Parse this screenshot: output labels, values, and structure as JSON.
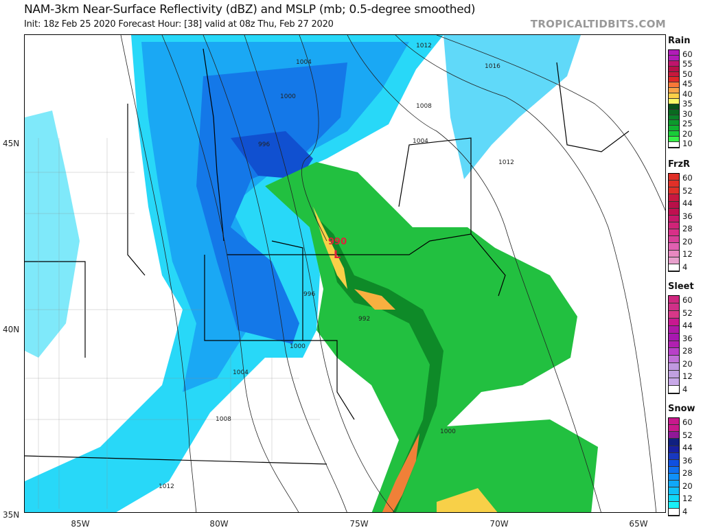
{
  "header": {
    "title": "NAM-3km Near-Surface Reflectivity (dBZ) and MSLP (mb; 0.5-degree smoothed)",
    "subtitle": "Init: 18z Feb 25 2020   Forecast Hour: [38]   valid at 08z Thu, Feb 27 2020",
    "brand": "TROPICALTIDBITS.COM"
  },
  "axes": {
    "longitudes": [
      "85W",
      "80W",
      "75W",
      "70W",
      "65W"
    ],
    "latitudes": [
      "45N",
      "40N",
      "35N"
    ]
  },
  "map": {
    "low_center": {
      "pressure": "990",
      "symbol": "L",
      "color": "#e0203a"
    },
    "isobar_labels": [
      "1012",
      "1004",
      "1000",
      "996",
      "1016",
      "1008",
      "1004",
      "1012",
      "1000",
      "1004",
      "1008",
      "1012",
      "1000",
      "996",
      "992"
    ]
  },
  "legends": [
    {
      "title": "Rain",
      "labels": [
        "60",
        "55",
        "50",
        "45",
        "40",
        "35",
        "30",
        "25",
        "20",
        "10"
      ],
      "colors": [
        "#b21cb8",
        "#b21cb8",
        "#c0146c",
        "#b81048",
        "#c8183c",
        "#e02828",
        "#f87838",
        "#f8a448",
        "#fcd048",
        "#f8f868",
        "#08501a",
        "#0a6a20",
        "#0a8228",
        "#0c9a2c",
        "#10b230",
        "#18cc38",
        "#38f048",
        "#ffffff"
      ]
    },
    {
      "title": "FrzR",
      "labels": [
        "60",
        "52",
        "44",
        "36",
        "28",
        "20",
        "12",
        "4"
      ],
      "colors": [
        "#e03028",
        "#e03028",
        "#e03028",
        "#c81840",
        "#b81048",
        "#c01050",
        "#c8186a",
        "#d02478",
        "#d83088",
        "#d84098",
        "#e060b0",
        "#e888c0",
        "#e8a0cc",
        "#ffffff"
      ]
    },
    {
      "title": "Sleet",
      "labels": [
        "60",
        "52",
        "44",
        "36",
        "28",
        "20",
        "12",
        "4"
      ],
      "colors": [
        "#d02880",
        "#d03088",
        "#d83888",
        "#c81890",
        "#b018a8",
        "#a818b0",
        "#b020b0",
        "#b840c8",
        "#c070d8",
        "#c098e0",
        "#c0a0e0",
        "#c8a8e8",
        "#ffffff"
      ]
    },
    {
      "title": "Snow",
      "labels": [
        "60",
        "52",
        "44",
        "36",
        "28",
        "20",
        "12",
        "4"
      ],
      "colors": [
        "#c8188c",
        "#c8188c",
        "#901898",
        "#102080",
        "#1820a0",
        "#1838c0",
        "#1050e0",
        "#1070f0",
        "#1090f8",
        "#10a8f8",
        "#10c0f8",
        "#10d8f8",
        "#18f0f8",
        "#ffffff"
      ]
    }
  ]
}
